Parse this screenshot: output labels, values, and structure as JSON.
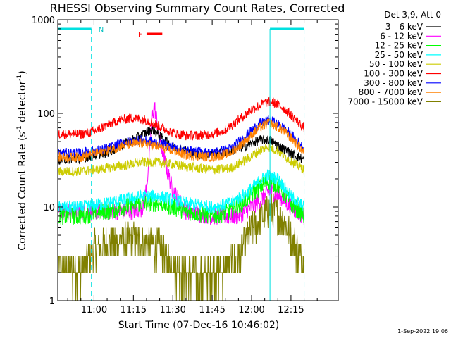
{
  "chart_data": {
    "type": "line",
    "title": "RHESSI Observing Summary Count Rates, Corrected",
    "xlabel": "Start Time (07-Dec-16 10:46:02)",
    "ylabel_main": "Corrected Count Rate (s",
    "ylabel_sup1": "-1",
    "ylabel_mid": " detector",
    "ylabel_sup2": "-1",
    "ylabel_end": ")",
    "yscale": "log",
    "ylim": [
      1,
      1000
    ],
    "xlim_minutes": [
      10.77,
      12.55
    ],
    "x_ticks": [
      "11:00",
      "11:15",
      "11:30",
      "11:45",
      "12:00",
      "12:15"
    ],
    "y_ticks": [
      "1",
      "10",
      "100",
      "1000"
    ],
    "legend_title": "Det 3,9, Att 0",
    "legend_position": "right",
    "timestamp": "1-Sep-2022 19:06",
    "markers": {
      "night_label": "N",
      "flare_label": "F",
      "night_intervals": [
        [
          "10:46",
          "10:59"
        ],
        [
          "12:07",
          "12:20"
        ]
      ],
      "flare_interval": [
        "11:20",
        "11:26"
      ]
    },
    "series": [
      {
        "name": "3 - 6 keV",
        "color": "#000000",
        "x": [
          "10:46",
          "10:55",
          "11:05",
          "11:12",
          "11:18",
          "11:22",
          "11:25",
          "11:30",
          "11:40",
          "11:50",
          "11:58",
          "12:03",
          "12:07",
          "12:12",
          "12:17",
          "12:20"
        ],
        "values": [
          32,
          33,
          38,
          48,
          58,
          68,
          58,
          44,
          36,
          38,
          45,
          52,
          52,
          42,
          35,
          32
        ]
      },
      {
        "name": "6 - 12 keV",
        "color": "#ff00ff",
        "x": [
          "10:46",
          "10:55",
          "11:05",
          "11:15",
          "11:19",
          "11:21",
          "11:22",
          "11:23",
          "11:25",
          "11:27",
          "11:30",
          "11:35",
          "11:45",
          "11:55",
          "12:00",
          "12:05",
          "12:07",
          "12:12",
          "12:17",
          "12:20"
        ],
        "values": [
          9,
          9,
          9,
          9,
          10,
          30,
          90,
          120,
          55,
          30,
          15,
          9,
          8,
          8,
          10,
          13,
          15,
          12,
          9,
          8
        ]
      },
      {
        "name": "12 - 25 keV",
        "color": "#00ff00",
        "x": [
          "10:46",
          "10:55",
          "11:05",
          "11:12",
          "11:18",
          "11:25",
          "11:35",
          "11:45",
          "11:52",
          "11:58",
          "12:03",
          "12:06",
          "12:10",
          "12:15",
          "12:20"
        ],
        "values": [
          8,
          8,
          9,
          10,
          11,
          11,
          9,
          8,
          9,
          12,
          16,
          19,
          17,
          11,
          8
        ]
      },
      {
        "name": "25 - 50 keV",
        "color": "#00ffff",
        "x": [
          "10:46",
          "10:55",
          "11:05",
          "11:12",
          "11:18",
          "11:25",
          "11:35",
          "11:45",
          "11:52",
          "11:58",
          "12:03",
          "12:06",
          "12:10",
          "12:15",
          "12:20"
        ],
        "values": [
          10,
          10,
          11,
          12,
          13,
          13,
          11,
          10,
          11,
          14,
          19,
          22,
          20,
          13,
          10
        ]
      },
      {
        "name": "50 - 100 keV",
        "color": "#cccc00",
        "x": [
          "10:46",
          "10:55",
          "11:05",
          "11:12",
          "11:18",
          "11:25",
          "11:35",
          "11:45",
          "11:52",
          "11:58",
          "12:03",
          "12:06",
          "12:10",
          "12:15",
          "12:20"
        ],
        "values": [
          24,
          24,
          26,
          28,
          30,
          30,
          27,
          25,
          26,
          32,
          40,
          44,
          40,
          31,
          25
        ]
      },
      {
        "name": "100 - 300 keV",
        "color": "#ff0000",
        "x": [
          "10:46",
          "10:55",
          "11:00",
          "11:05",
          "11:10",
          "11:15",
          "11:20",
          "11:25",
          "11:30",
          "11:35",
          "11:40",
          "11:45",
          "11:50",
          "11:55",
          "12:00",
          "12:05",
          "12:08",
          "12:12",
          "12:16",
          "12:20"
        ],
        "values": [
          60,
          60,
          64,
          75,
          85,
          90,
          85,
          72,
          62,
          58,
          58,
          60,
          66,
          85,
          110,
          130,
          132,
          115,
          90,
          70
        ]
      },
      {
        "name": "300 - 800 keV",
        "color": "#0000ff",
        "x": [
          "10:46",
          "10:55",
          "11:05",
          "11:12",
          "11:18",
          "11:25",
          "11:35",
          "11:45",
          "11:52",
          "11:58",
          "12:03",
          "12:07",
          "12:12",
          "12:17",
          "12:20"
        ],
        "values": [
          38,
          38,
          42,
          50,
          52,
          48,
          40,
          38,
          42,
          58,
          78,
          85,
          72,
          52,
          42
        ]
      },
      {
        "name": "800 - 7000 keV",
        "color": "#ff8000",
        "x": [
          "10:46",
          "10:55",
          "11:05",
          "11:12",
          "11:18",
          "11:25",
          "11:35",
          "11:45",
          "11:52",
          "11:58",
          "12:03",
          "12:07",
          "12:12",
          "12:17",
          "12:20"
        ],
        "values": [
          34,
          34,
          40,
          46,
          48,
          44,
          36,
          34,
          38,
          52,
          70,
          80,
          66,
          48,
          38
        ]
      },
      {
        "name": "7000 - 15000 keV",
        "color": "#808000",
        "x": [
          "10:46",
          "10:55",
          "11:00",
          "11:05",
          "11:15",
          "11:25",
          "11:30",
          "11:40",
          "11:50",
          "11:55",
          "12:00",
          "12:05",
          "12:08",
          "12:12",
          "12:16",
          "12:20"
        ],
        "values": [
          2.2,
          2.1,
          3.5,
          4.0,
          4.5,
          3.6,
          2.2,
          1.8,
          2.2,
          3.0,
          5.5,
          8.5,
          9.5,
          7.0,
          4.2,
          2.5
        ]
      }
    ]
  }
}
